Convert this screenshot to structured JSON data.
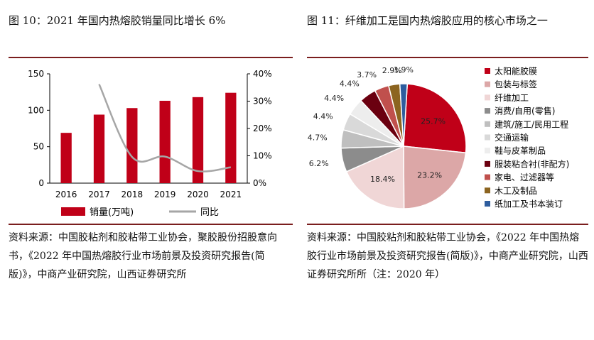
{
  "left": {
    "title": "图 10：2021 年国内热熔胶销量同比增长 6%",
    "source": "资料来源：中国胶粘剂和胶粘带工业协会，聚胶股份招股意向书，《2022 年中国热熔胶行业市场前景及投资研究报告(简版)》，中商产业研究院，山西证券研究所"
  },
  "right": {
    "title": "图 11：纤维加工是国内热熔胶应用的核心市场之一",
    "source": "资料来源：中国胶粘剂和胶粘带工业协会，《2022 年中国热熔胶行业市场前景及投资研究报告(简版)》，中商产业研究院，山西证券研究所所（注：2020 年）"
  },
  "chart_data": [
    {
      "type": "bar",
      "categories": [
        "2016",
        "2017",
        "2018",
        "2019",
        "2020",
        "2021"
      ],
      "series": [
        {
          "name": "销量(万吨)",
          "type": "bar",
          "axis": "left",
          "color": "#c00018",
          "values": [
            69,
            94,
            103,
            113,
            118,
            124
          ]
        },
        {
          "name": "同比",
          "type": "line",
          "axis": "right",
          "color": "#a6a6a6",
          "values": [
            null,
            36.2,
            9.6,
            9.7,
            4.4,
            5.8
          ]
        }
      ],
      "y_left": {
        "ylim": [
          0,
          150
        ],
        "ticks": [
          "0",
          "50",
          "100",
          "150"
        ]
      },
      "y_right": {
        "ylim": [
          0,
          40
        ],
        "ticks": [
          "0%",
          "10%",
          "20%",
          "30%",
          "40%"
        ]
      },
      "legend_position": "bottom",
      "grid": false
    },
    {
      "type": "pie",
      "labels": [
        "太阳能胶膜",
        "包装与标签",
        "纤维加工",
        "消费/自用(零售)",
        "建筑/施工/民用工程",
        "交通运输",
        "鞋与皮革制品",
        "服装粘合衬(非配方)",
        "家电、过滤器等",
        "木工及制品",
        "纸加工及书本装订"
      ],
      "values": [
        25.7,
        23.2,
        18.4,
        6.2,
        4.7,
        4.4,
        4.4,
        4.4,
        3.7,
        2.9,
        1.9
      ],
      "value_labels": [
        "25.7%",
        "23.2%",
        "18.4%",
        "6.2%",
        "4.7%",
        "4.4%",
        "4.4%",
        "4.4%",
        "3.7%",
        "2.9%",
        "1.9%"
      ],
      "colors": [
        "#c00018",
        "#dca7a7",
        "#f0d6d6",
        "#8c8c8c",
        "#bfbfbf",
        "#d9d9d9",
        "#ededed",
        "#6b0010",
        "#c0504d",
        "#8c6420",
        "#2e5d9e"
      ],
      "legend_position": "right"
    }
  ]
}
